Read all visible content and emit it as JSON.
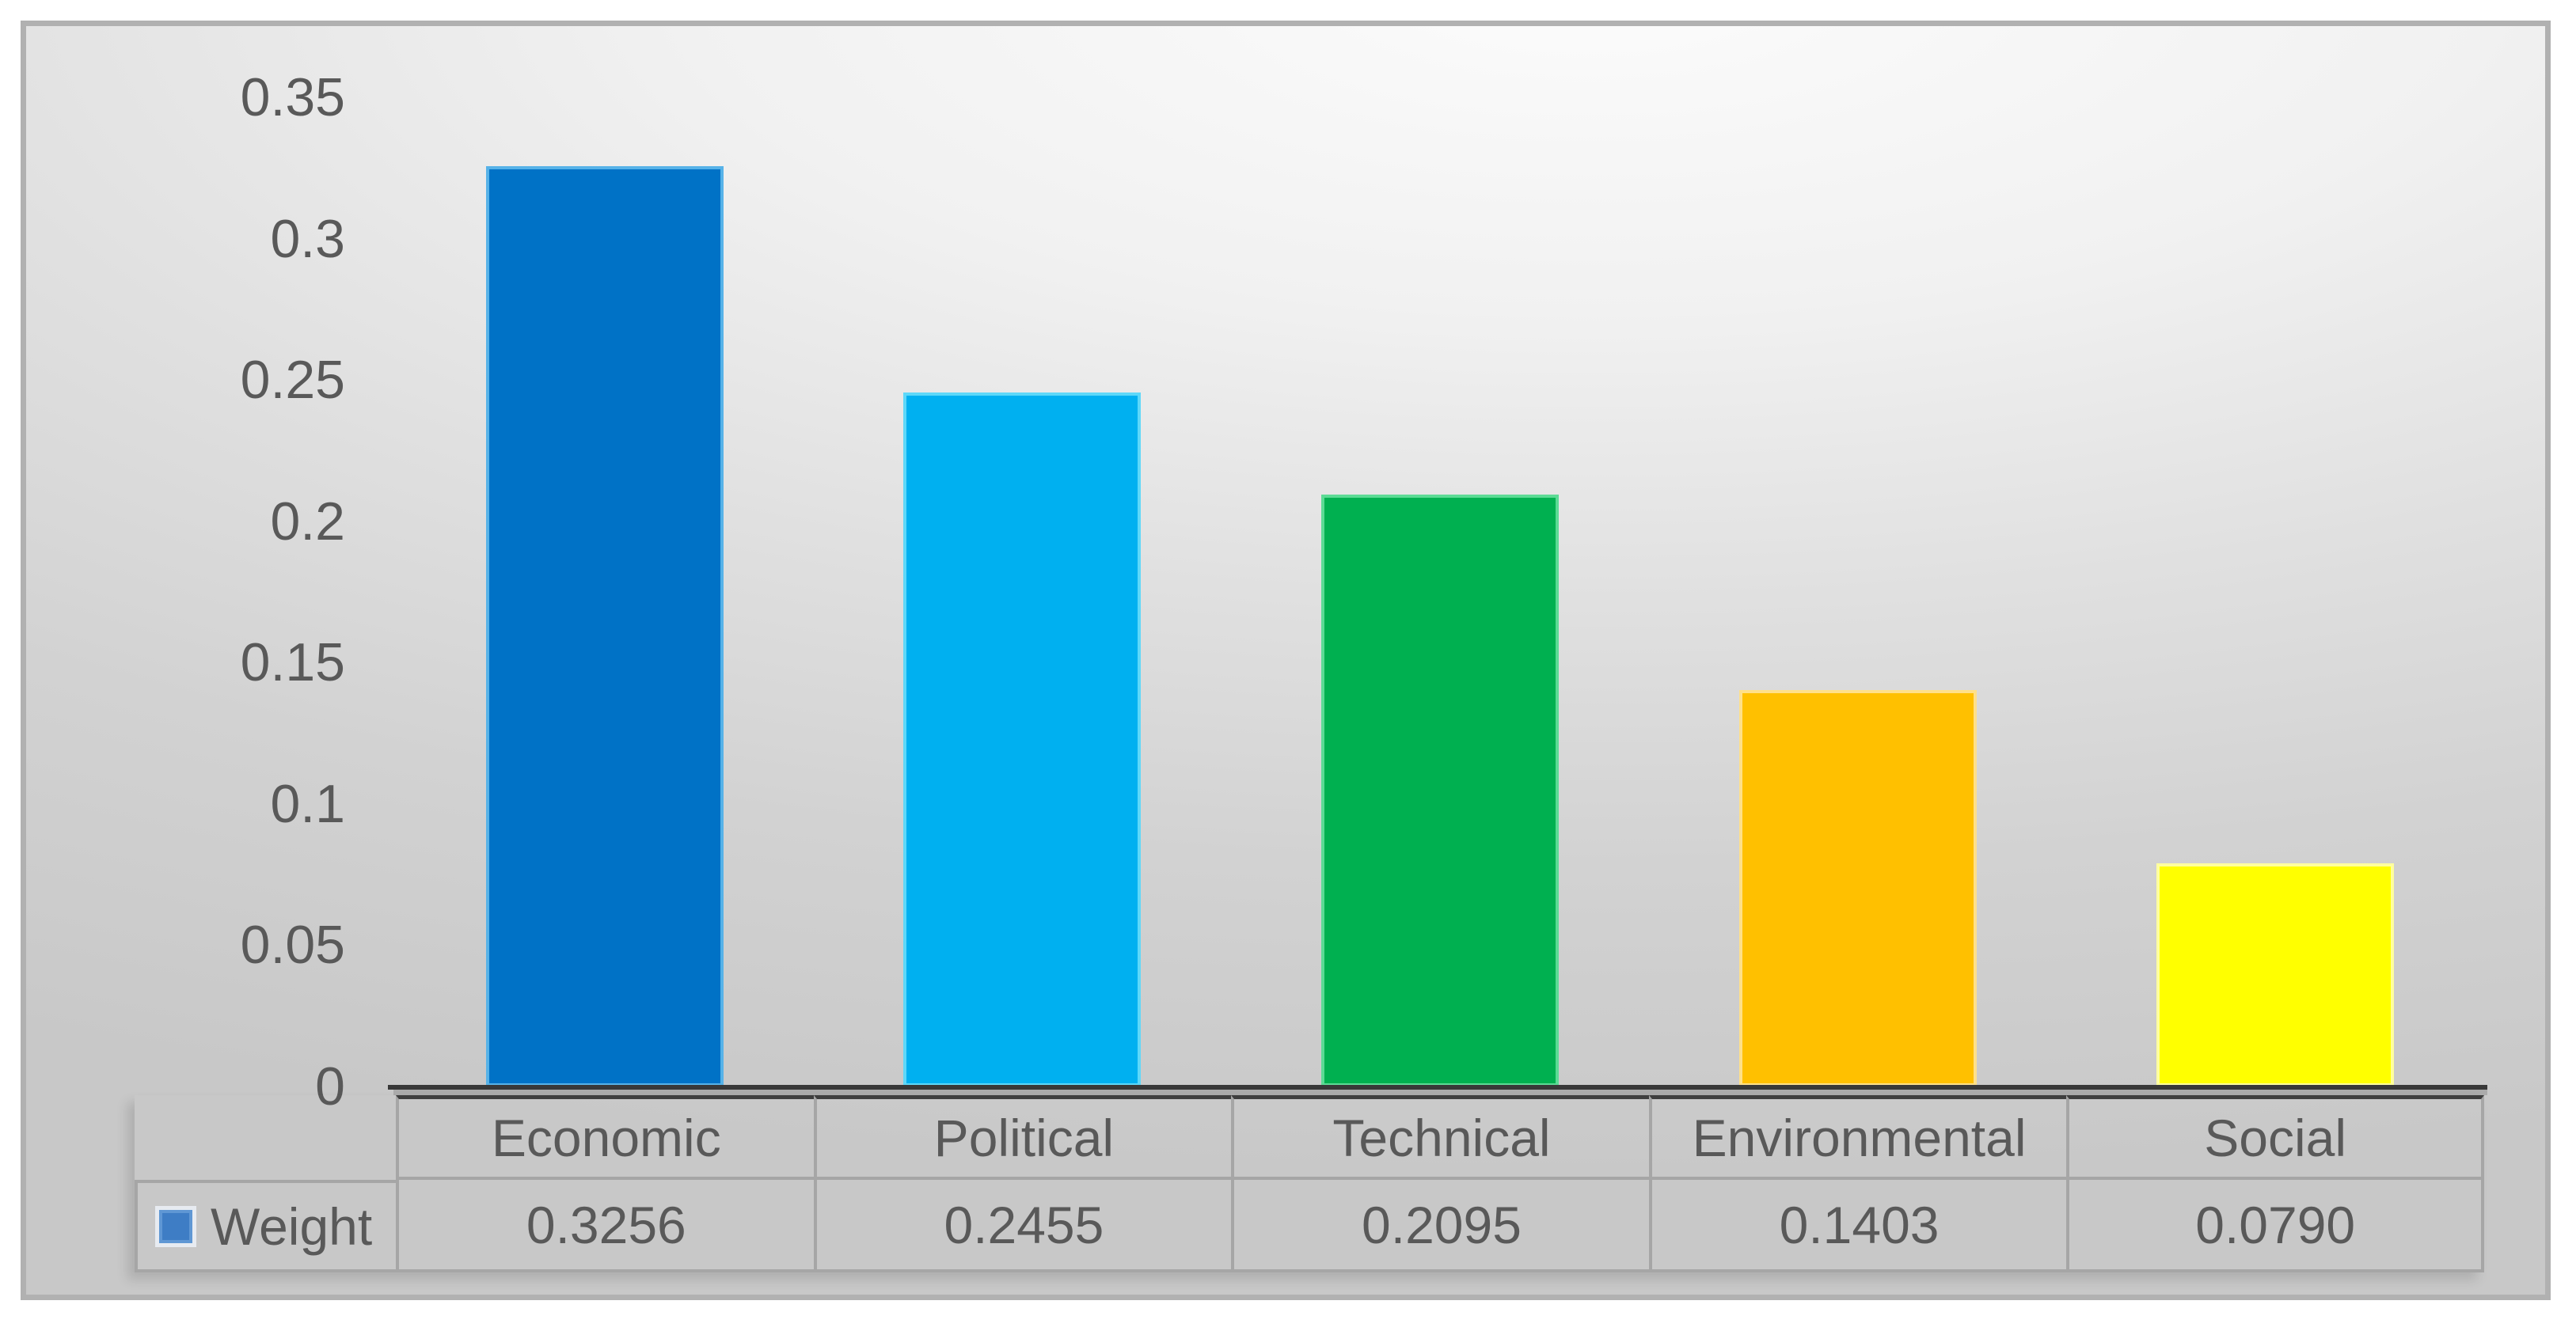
{
  "chart_data": {
    "type": "bar",
    "title": "",
    "xlabel": "",
    "ylabel": "",
    "categories": [
      "Economic",
      "Political",
      "Technical",
      "Environmental",
      "Social"
    ],
    "series": [
      {
        "name": "Weight",
        "values": [
          0.3256,
          0.2455,
          0.2095,
          0.1403,
          0.079
        ],
        "value_labels": [
          "0.3256",
          "0.2455",
          "0.2095",
          "0.1403",
          "0.0790"
        ]
      }
    ],
    "bar_colors": [
      "#0072C6",
      "#00B0F0",
      "#00B050",
      "#FFC000",
      "#FFFF00"
    ],
    "bar_edge_colors": [
      "#56B2E8",
      "#5ED8F9",
      "#5CDB95",
      "#FFE08A",
      "#FFFF9E"
    ],
    "y_axis": {
      "min": 0,
      "max": 0.35,
      "tick_step": 0.05,
      "tick_labels": [
        "0",
        "0.05",
        "0.1",
        "0.15",
        "0.2",
        "0.25",
        "0.3",
        "0.35"
      ]
    },
    "legend": {
      "position": "data-table-left",
      "entries": [
        {
          "label": "Weight",
          "marker_color": "#3e7dc5"
        }
      ]
    },
    "gridlines": false,
    "data_table_shown": true,
    "ylim": [
      0,
      0.35
    ]
  },
  "colors": {
    "axis_text": "#595959",
    "table_text": "#595959",
    "table_border": "#a6a6a6",
    "axis_line": "#383838",
    "frame_border": "#b1b1b1"
  }
}
